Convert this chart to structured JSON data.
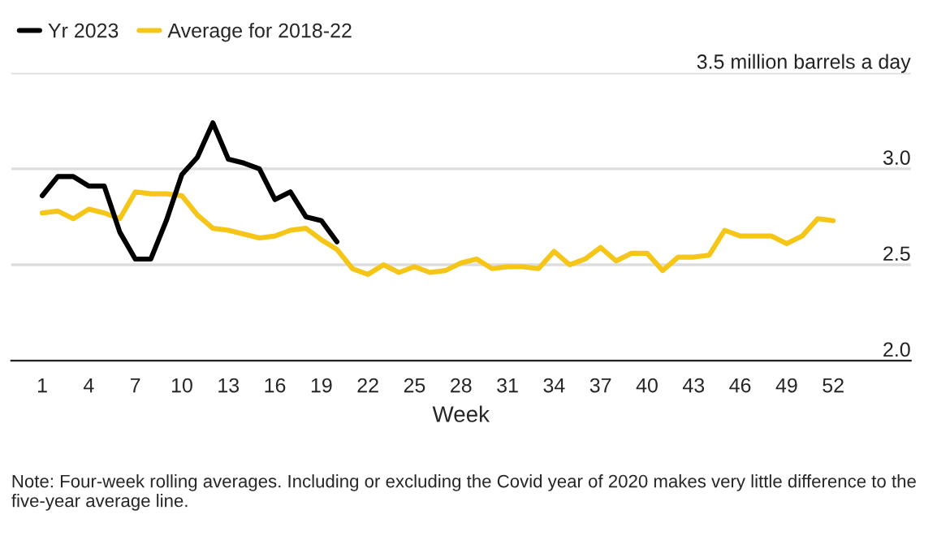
{
  "chart_data": {
    "type": "line",
    "xlabel": "Week",
    "x": [
      1,
      2,
      3,
      4,
      5,
      6,
      7,
      8,
      9,
      10,
      11,
      12,
      13,
      14,
      15,
      16,
      17,
      18,
      19,
      20,
      21,
      22,
      23,
      24,
      25,
      26,
      27,
      28,
      29,
      30,
      31,
      32,
      33,
      34,
      35,
      36,
      37,
      38,
      39,
      40,
      41,
      42,
      43,
      44,
      45,
      46,
      47,
      48,
      49,
      50,
      51,
      52
    ],
    "series": [
      {
        "name": "Average for 2018-22",
        "color": "#f5c518",
        "values": [
          2.77,
          2.78,
          2.74,
          2.79,
          2.77,
          2.74,
          2.88,
          2.87,
          2.87,
          2.86,
          2.76,
          2.69,
          2.68,
          2.66,
          2.64,
          2.65,
          2.68,
          2.69,
          2.63,
          2.58,
          2.48,
          2.45,
          2.5,
          2.46,
          2.49,
          2.46,
          2.47,
          2.51,
          2.53,
          2.48,
          2.49,
          2.49,
          2.48,
          2.57,
          2.5,
          2.53,
          2.59,
          2.52,
          2.56,
          2.56,
          2.47,
          2.54,
          2.54,
          2.55,
          2.68,
          2.65,
          2.65,
          2.65,
          2.61,
          2.65,
          2.74,
          2.73
        ]
      },
      {
        "name": "Yr 2023",
        "color": "#000000",
        "values": [
          2.86,
          2.96,
          2.96,
          2.91,
          2.91,
          2.67,
          2.53,
          2.53,
          2.73,
          2.97,
          3.06,
          3.24,
          3.05,
          3.03,
          3.0,
          2.84,
          2.88,
          2.75,
          2.73,
          2.62,
          null,
          null,
          null,
          null,
          null,
          null,
          null,
          null,
          null,
          null,
          null,
          null,
          null,
          null,
          null,
          null,
          null,
          null,
          null,
          null,
          null,
          null,
          null,
          null,
          null,
          null,
          null,
          null,
          null,
          null,
          null,
          null
        ]
      }
    ],
    "xlim": [
      -1,
      57
    ],
    "xticks": [
      1,
      4,
      7,
      10,
      13,
      16,
      19,
      22,
      25,
      28,
      31,
      34,
      37,
      40,
      43,
      46,
      49,
      52
    ],
    "ylim": [
      2.0,
      3.5
    ],
    "yticks": [
      {
        "value": 2,
        "label": "2.0"
      },
      2.5,
      {
        "value": 3,
        "label": "3.0"
      },
      {
        "value": 3.5,
        "label": "3.5 million barrels a day"
      }
    ],
    "grid": "y",
    "legend": "top left",
    "marker": "none",
    "line_style": "solid",
    "annotations": [
      "Note: Four-week rolling averages. Including or excluding the Covid year of 2020 makes very little difference to the five-year average line."
    ]
  }
}
